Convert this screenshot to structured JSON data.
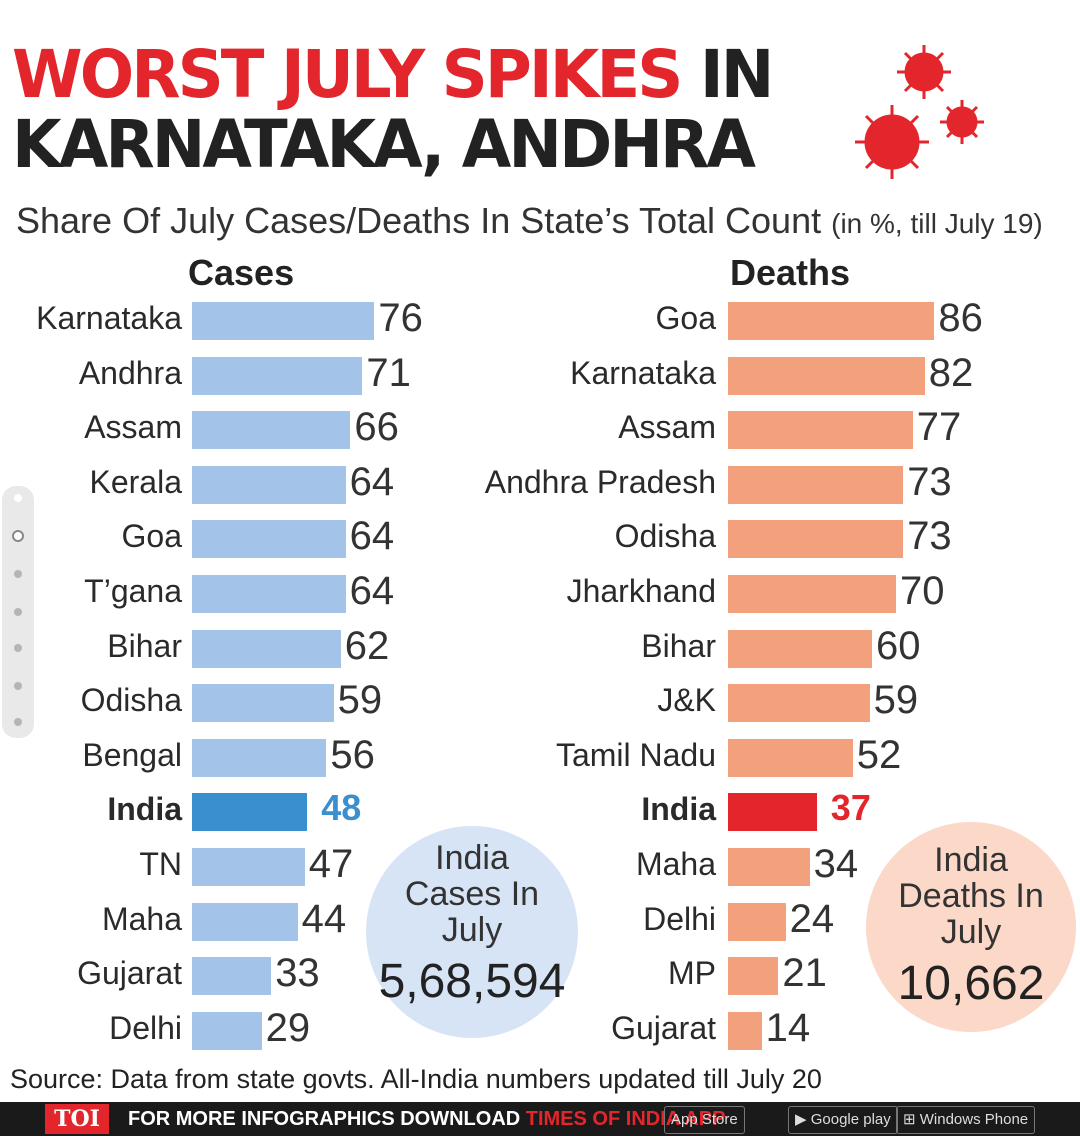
{
  "title": {
    "line1_red": "WORST JULY SPIKES",
    "line1_black": " IN",
    "line2": "KARNATAKA, ANDHRA"
  },
  "subtitle": {
    "main": "Share Of July Cases/Deaths In State’s Total Count",
    "small": "(in %, till July 19)"
  },
  "colors": {
    "cases_bar": "#a3c4e8",
    "cases_india": "#3a8fce",
    "deaths_bar": "#f3a07c",
    "deaths_india": "#e3262c",
    "title_red": "#e3262c"
  },
  "chart_data": [
    {
      "type": "bar",
      "orientation": "horizontal",
      "title": "Cases",
      "categories": [
        "Karnataka",
        "Andhra",
        "Assam",
        "Kerala",
        "Goa",
        "T’gana",
        "Bihar",
        "Odisha",
        "Bengal",
        "India",
        "TN",
        "Maha",
        "Gujarat",
        "Delhi"
      ],
      "values": [
        76,
        71,
        66,
        64,
        64,
        64,
        62,
        59,
        56,
        48,
        47,
        44,
        33,
        29
      ],
      "highlight": "India"
    },
    {
      "type": "bar",
      "orientation": "horizontal",
      "title": "Deaths",
      "categories": [
        "Goa",
        "Karnataka",
        "Assam",
        "Andhra Pradesh",
        "Odisha",
        "Jharkhand",
        "Bihar",
        "J&K",
        "Tamil Nadu",
        "India",
        "Maha",
        "Delhi",
        "MP",
        "Gujarat"
      ],
      "values": [
        86,
        82,
        77,
        73,
        73,
        70,
        60,
        59,
        52,
        37,
        34,
        24,
        21,
        14
      ],
      "highlight": "India"
    }
  ],
  "bubbles": {
    "cases": {
      "label_lines": [
        "India",
        "Cases In",
        "July"
      ],
      "number": "5,68,594"
    },
    "deaths": {
      "label_lines": [
        "India",
        "Deaths In",
        "July"
      ],
      "number": "10,662"
    }
  },
  "source": "Source: Data from state govts. All-India numbers updated till July 20",
  "footer": {
    "brand": "TOI",
    "promo_text": "FOR MORE INFOGRAPHICS DOWNLOAD ",
    "promo_app": "TIMES OF INDIA APP",
    "store_apple": "App Store",
    "store_google": "Google play",
    "store_windows": "Windows Phone"
  }
}
